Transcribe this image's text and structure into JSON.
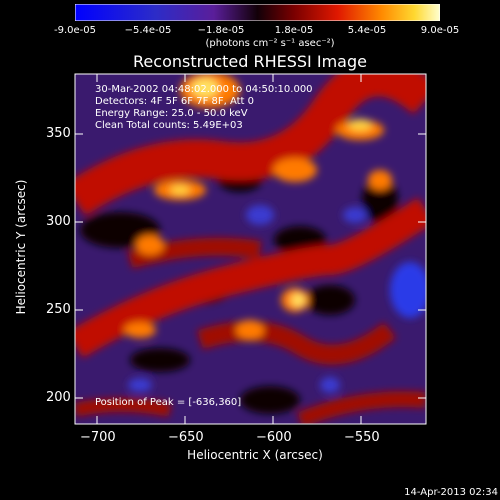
{
  "colorbar": {
    "ticks": [
      "-9.0e-05",
      "−5.4e-05",
      "−1.8e-05",
      "1.8e-05",
      "5.4e-05",
      "9.0e-05"
    ],
    "units_label": "(photons cm⁻² s⁻¹ asec⁻²)"
  },
  "title": "Reconstructed RHESSI Image",
  "annotations": {
    "line1": "30-Mar-2002 04:48:02.000 to 04:50:10.000",
    "line2": "Detectors: 4F 5F 6F 7F 8F, Att 0",
    "line3": "Energy Range: 25.0 - 50.0 keV",
    "line4": "Clean    Total counts: 5.49E+03",
    "peak": "Position of Peak = [-636,360]"
  },
  "x_axis": {
    "label": "Heliocentric X (arcsec)",
    "ticks": [
      "−700",
      "−650",
      "−600",
      "−550"
    ]
  },
  "y_axis": {
    "label": "Heliocentric Y (arcsec)",
    "ticks": [
      "200",
      "250",
      "300",
      "350"
    ]
  },
  "timestamp": "14-Apr-2013 02:34"
}
